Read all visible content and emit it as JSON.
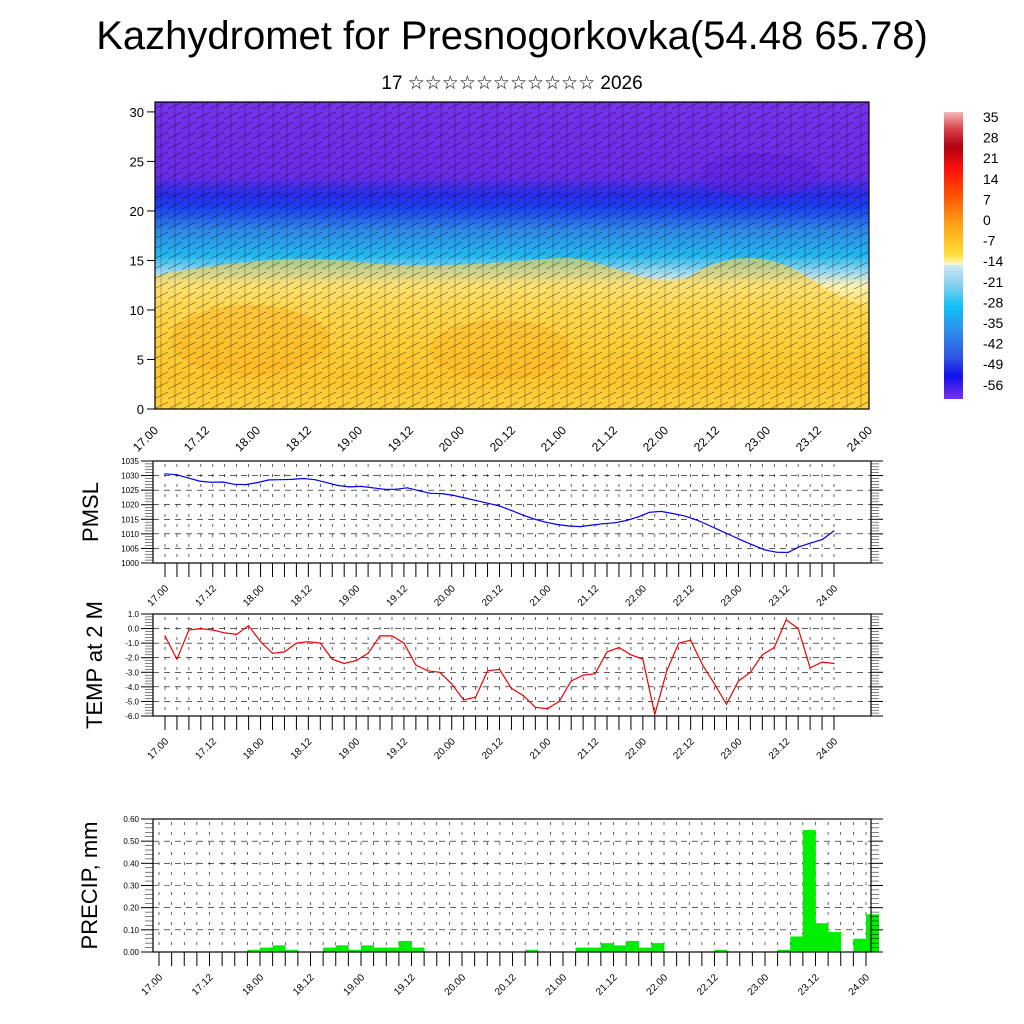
{
  "header": {
    "title": "Kazhydromet for Presnogorkovka(54.48 65.78)",
    "subtitle": "17 ☆☆☆☆☆☆☆☆☆☆☆ 2026"
  },
  "colors": {
    "pmsl_line": "#0000ee",
    "temp_line": "#ee0000",
    "precip_bar": "#00ee00"
  },
  "x_tick_labels": [
    "17.00",
    "17.12",
    "18.00",
    "18.12",
    "19.00",
    "19.12",
    "20.00",
    "20.12",
    "21.00",
    "21.12",
    "22.00",
    "22.12",
    "23.00",
    "23.12",
    "24.00"
  ],
  "chart_data": [
    {
      "type": "heatmap",
      "title": "Kazhydromet for Presnogorkovka(54.48 65.78)",
      "subtitle": "17 ☆☆☆☆☆☆☆☆☆☆☆ 2026",
      "xlabel": "",
      "ylabel": "",
      "ylim": [
        0,
        31
      ],
      "yticks": [
        "0",
        "5",
        "10",
        "15",
        "20",
        "25",
        "30"
      ],
      "xticks": [
        "17.00",
        "17.12",
        "18.00",
        "18.12",
        "19.00",
        "19.12",
        "20.00",
        "20.12",
        "21.00",
        "21.12",
        "22.00",
        "22.12",
        "23.00",
        "23.12",
        "24.00"
      ],
      "colorbar": {
        "labels": [
          "35",
          "28",
          "21",
          "14",
          "7",
          "0",
          "-7",
          "-14",
          "-21",
          "-28",
          "-35",
          "-42",
          "-49",
          "-56"
        ],
        "range": [
          -60,
          38
        ]
      }
    },
    {
      "type": "line",
      "ylabel": "PMSL",
      "ylim": [
        1000,
        1035
      ],
      "yticks": [
        "1000",
        "1005",
        "1010",
        "1015",
        "1020",
        "1025",
        "1030",
        "1035"
      ],
      "x_hours": 168,
      "step_hours": 3,
      "values": [
        1030.6,
        1030.3,
        1029.2,
        1028.1,
        1027.7,
        1027.8,
        1027.0,
        1026.9,
        1027.6,
        1028.5,
        1028.6,
        1028.7,
        1029.0,
        1028.6,
        1027.6,
        1026.6,
        1026.1,
        1026.3,
        1025.8,
        1025.3,
        1025.3,
        1025.8,
        1024.8,
        1023.9,
        1023.8,
        1023.2,
        1022.3,
        1021.4,
        1020.5,
        1019.6,
        1018.1,
        1016.5,
        1015.1,
        1014.0,
        1013.2,
        1012.7,
        1012.5,
        1013.0,
        1013.5,
        1013.8,
        1014.6,
        1015.8,
        1017.4,
        1017.7,
        1017.0,
        1016.2,
        1014.9,
        1013.2,
        1011.4,
        1009.6,
        1007.8,
        1006.1,
        1004.5,
        1003.7,
        1003.6,
        1005.6,
        1006.9,
        1008.1,
        1011.0
      ]
    },
    {
      "type": "line",
      "ylabel": "TEMP at 2 M",
      "ylim": [
        -6.0,
        1.0
      ],
      "yticks": [
        "-6.0",
        "-5.0",
        "-4.0",
        "-3.0",
        "-2.0",
        "-1.0",
        "0.0",
        "1.0"
      ],
      "step_hours": 3,
      "values": [
        -0.5,
        -2.1,
        -0.1,
        0.0,
        -0.1,
        -0.3,
        -0.4,
        0.2,
        -0.9,
        -1.7,
        -1.6,
        -1.0,
        -0.9,
        -1.0,
        -2.1,
        -2.4,
        -2.2,
        -1.7,
        -0.5,
        -0.5,
        -1.0,
        -2.5,
        -2.9,
        -3.0,
        -3.8,
        -4.9,
        -4.7,
        -2.9,
        -2.8,
        -4.1,
        -4.6,
        -5.4,
        -5.5,
        -5.0,
        -3.6,
        -3.2,
        -3.1,
        -1.6,
        -1.3,
        -1.8,
        -2.1,
        -5.9,
        -2.9,
        -1.0,
        -0.8,
        -2.5,
        -3.8,
        -5.2,
        -3.6,
        -3.0,
        -1.8,
        -1.3,
        0.6,
        0.0,
        -2.7,
        -2.3,
        -2.4
      ]
    },
    {
      "type": "bar",
      "ylabel": "PRECIP, mm",
      "ylim": [
        0.0,
        0.6
      ],
      "yticks": [
        "0.00",
        "0.10",
        "0.20",
        "0.30",
        "0.40",
        "0.50",
        "0.60"
      ],
      "step_hours": 3,
      "values": [
        0,
        0,
        0,
        0,
        0,
        0,
        0,
        0.01,
        0.02,
        0.03,
        0.01,
        0,
        0,
        0.02,
        0.03,
        0.01,
        0.03,
        0.02,
        0.02,
        0.05,
        0.02,
        0,
        0,
        0,
        0,
        0,
        0,
        0,
        0,
        0.01,
        0,
        0,
        0,
        0.02,
        0.02,
        0.04,
        0.03,
        0.05,
        0.02,
        0.04,
        0,
        0,
        0,
        0,
        0.01,
        0,
        0,
        0,
        0,
        0.01,
        0.07,
        0.55,
        0.13,
        0.09,
        0,
        0.06,
        0.17
      ]
    }
  ]
}
